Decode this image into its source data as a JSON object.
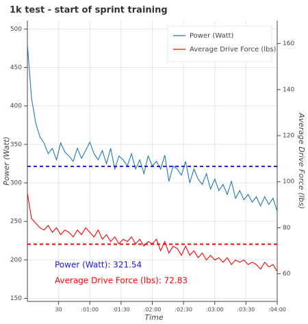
{
  "chart_data": {
    "type": "line",
    "title": "1k test - start of sprint training",
    "x_label": "Time",
    "y_label": "Power (Watt)",
    "y2_label": "Average Drive Force (lbs)",
    "x": [
      0,
      4,
      8,
      12,
      16,
      20,
      24,
      28,
      32,
      36,
      40,
      44,
      48,
      52,
      56,
      60,
      64,
      68,
      72,
      76,
      80,
      84,
      88,
      92,
      96,
      100,
      104,
      108,
      112,
      116,
      120,
      124,
      128,
      132,
      136,
      140,
      144,
      148,
      152,
      156,
      160,
      164,
      168,
      172,
      176,
      180,
      184,
      188,
      192,
      196,
      200,
      204,
      208,
      212,
      216,
      220,
      224,
      228,
      232,
      236,
      240
    ],
    "series": [
      {
        "name": "Power (Watt)",
        "color": "#1f77b4",
        "axis": "y",
        "values": [
          480,
          410,
          378,
          360,
          352,
          338,
          345,
          330,
          352,
          340,
          335,
          328,
          345,
          332,
          342,
          353,
          338,
          330,
          342,
          325,
          345,
          318,
          335,
          330,
          322,
          338,
          318,
          330,
          312,
          335,
          322,
          328,
          318,
          336,
          302,
          322,
          318,
          310,
          328,
          300,
          318,
          305,
          298,
          312,
          292,
          305,
          290,
          298,
          285,
          302,
          280,
          290,
          278,
          285,
          275,
          282,
          270,
          282,
          272,
          280,
          263
        ]
      },
      {
        "name": "Average Drive Force (lbs)",
        "color": "#ff0000",
        "axis": "y2",
        "values": [
          95,
          84,
          82,
          80,
          79,
          81,
          78,
          80,
          77,
          79,
          78,
          76,
          79,
          77,
          80,
          78,
          76,
          79,
          75,
          77,
          74,
          76,
          73,
          75,
          74,
          76,
          73,
          75,
          72,
          74,
          73,
          75,
          70,
          74,
          69,
          72,
          71,
          68,
          72,
          68,
          70,
          67,
          69,
          66,
          68,
          66,
          67,
          65,
          67,
          64,
          66,
          65,
          66,
          64,
          65,
          64,
          62,
          65,
          63,
          64,
          61
        ]
      }
    ],
    "mean_lines": [
      {
        "value": 321.54,
        "label": "Power (Watt): 321.54",
        "color": "#1a1adb",
        "axis": "y"
      },
      {
        "value": 72.83,
        "label": "Average Drive Force (lbs):  72.83",
        "color": "#ff0000",
        "axis": "y2"
      }
    ],
    "xlim": [
      0,
      240
    ],
    "xticks": [
      {
        "value": 30,
        "label": "30"
      },
      {
        "value": 60,
        "label": ":01:00"
      },
      {
        "value": 90,
        "label": ":01:30"
      },
      {
        "value": 120,
        "label": ":02:00"
      },
      {
        "value": 150,
        "label": ":02:30"
      },
      {
        "value": 180,
        "label": ":03:00"
      },
      {
        "value": 210,
        "label": ":03:30"
      },
      {
        "value": 240,
        "label": ":04:00"
      }
    ],
    "ylim": [
      146,
      511
    ],
    "yticks": [
      150,
      200,
      250,
      300,
      350,
      400,
      450,
      500
    ],
    "y2lim": [
      48,
      170
    ],
    "y2ticks": [
      60,
      80,
      100,
      120,
      140,
      160
    ],
    "grid": true,
    "legend": "top-right"
  }
}
